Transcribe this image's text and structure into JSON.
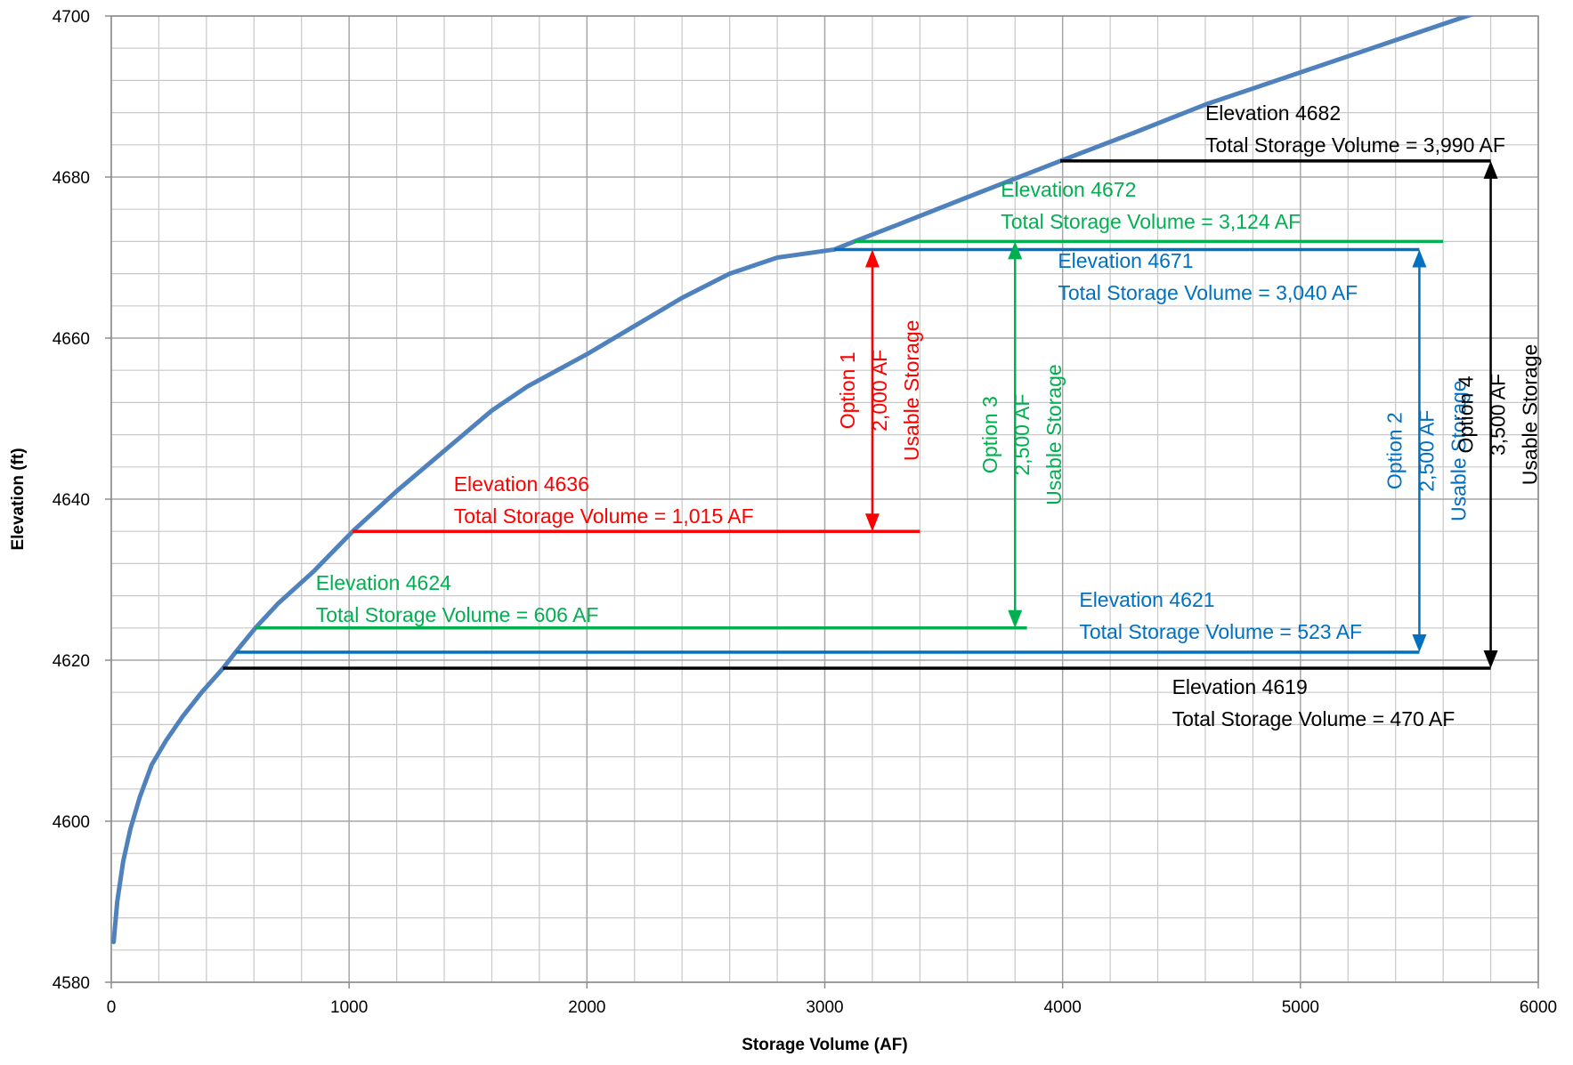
{
  "chart_data": {
    "type": "line",
    "title": "",
    "xlabel": "Storage Volume (AF)",
    "ylabel": "Elevation (ft)",
    "xlim": [
      0,
      6000
    ],
    "ylim": [
      4580,
      4700
    ],
    "x_ticks": [
      0,
      1000,
      2000,
      3000,
      4000,
      5000,
      6000
    ],
    "y_ticks": [
      4580,
      4600,
      4620,
      4640,
      4660,
      4680,
      4700
    ],
    "x_minor_step": 200,
    "y_minor_step": 4,
    "grid": true,
    "legend": "none",
    "colors": {
      "curve": "#4f81bd",
      "option1": "#ff0000",
      "option2": "#0070c0",
      "option3": "#00b050",
      "option4": "#000000",
      "grid_major": "#a6a6a6",
      "grid_minor": "#c8c8c8"
    },
    "series": [
      {
        "x": [
          10,
          25,
          50,
          80,
          120,
          170,
          230,
          300,
          380,
          470,
          523,
          606,
          700,
          850,
          1015,
          1200,
          1400,
          1600,
          1750,
          2000,
          2200,
          2400,
          2600,
          2800,
          3040,
          3124,
          3300,
          3600,
          3990,
          4300,
          4600,
          5000,
          5400,
          5800
        ],
        "y": [
          4585,
          4590,
          4595,
          4599,
          4603,
          4607,
          4610,
          4613,
          4616,
          4619,
          4621,
          4624,
          4627,
          4631,
          4636,
          4641,
          4646,
          4651,
          4654,
          4658,
          4661.5,
          4665,
          4668,
          4670,
          4671,
          4672,
          4674,
          4677.5,
          4682,
          4685.5,
          4689,
          4693,
          4697,
          4701
        ]
      }
    ],
    "annotations": [
      {
        "id": "elev-4682",
        "elevation": 4682,
        "x_start": 3990,
        "x_end": 5800,
        "color": "option4",
        "label1": "Elevation 4682",
        "label2": "Total Storage Volume = 3,990 AF"
      },
      {
        "id": "elev-4672",
        "elevation": 4672,
        "x_start": 3124,
        "x_end": 5600,
        "color": "option3",
        "label1": "Elevation 4672",
        "label2": "Total Storage Volume = 3,124 AF"
      },
      {
        "id": "elev-4671",
        "elevation": 4671,
        "x_start": 3040,
        "x_end": 5500,
        "color": "option2",
        "label1": "Elevation 4671",
        "label2": "Total Storage Volume = 3,040 AF"
      },
      {
        "id": "elev-4636",
        "elevation": 4636,
        "x_start": 1015,
        "x_end": 3400,
        "color": "option1",
        "label1": "Elevation 4636",
        "label2": "Total Storage Volume = 1,015 AF"
      },
      {
        "id": "elev-4624",
        "elevation": 4624,
        "x_start": 606,
        "x_end": 3850,
        "color": "option3",
        "label1": "Elevation 4624",
        "label2": "Total Storage Volume = 606 AF"
      },
      {
        "id": "elev-4621",
        "elevation": 4621,
        "x_start": 523,
        "x_end": 5500,
        "color": "option2",
        "label1": "Elevation 4621",
        "label2": "Total Storage Volume = 523 AF"
      },
      {
        "id": "elev-4619",
        "elevation": 4619,
        "x_start": 470,
        "x_end": 5800,
        "color": "option4",
        "label1": "Elevation 4619",
        "label2": "Total Storage Volume = 470 AF"
      }
    ],
    "options": [
      {
        "id": "option-1",
        "x": 3200,
        "y_top": 4671,
        "y_bottom": 4636,
        "color": "option1",
        "lines": [
          "Option 1",
          "2,000 AF",
          "Usable Storage"
        ]
      },
      {
        "id": "option-3",
        "x": 3800,
        "y_top": 4672,
        "y_bottom": 4624,
        "color": "option3",
        "lines": [
          "Option 3",
          "2,500 AF",
          "Usable Storage"
        ]
      },
      {
        "id": "option-2",
        "x": 5500,
        "y_top": 4671,
        "y_bottom": 4621,
        "color": "option2",
        "lines": [
          "Option 2",
          "2,500 AF",
          "Usable Storage"
        ]
      },
      {
        "id": "option-4",
        "x": 5800,
        "y_top": 4682,
        "y_bottom": 4619,
        "color": "option4",
        "lines": [
          "Option 4",
          "3,500 AF",
          "Usable Storage"
        ]
      }
    ]
  }
}
